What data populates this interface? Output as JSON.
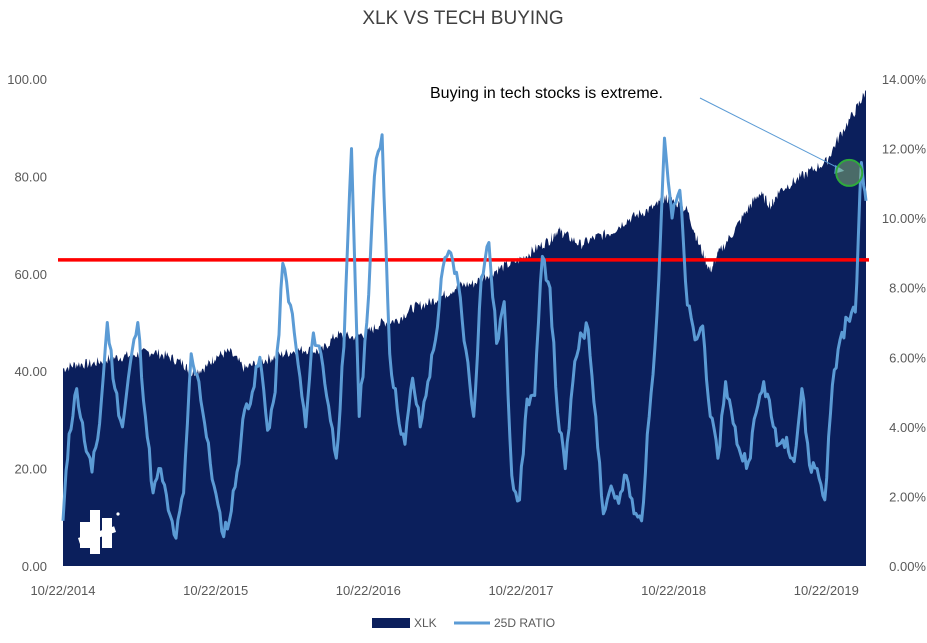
{
  "chart_data": {
    "type": "area",
    "title": "XLK VS TECH BUYING",
    "x_tick_labels": [
      "10/22/2014",
      "10/22/2015",
      "10/22/2016",
      "10/22/2017",
      "10/22/2018",
      "10/22/2019"
    ],
    "y_left": {
      "ticks": [
        "0.00",
        "20.00",
        "40.00",
        "60.00",
        "80.00",
        "100.00"
      ],
      "lim": [
        0,
        100
      ]
    },
    "y_right": {
      "ticks": [
        "0.00%",
        "2.00%",
        "4.00%",
        "6.00%",
        "8.00%",
        "10.00%",
        "12.00%",
        "14.00%"
      ],
      "lim": [
        0,
        14
      ]
    },
    "series": [
      {
        "name": "XLK",
        "axis": "left",
        "kind": "area",
        "color": "#0b1f5c",
        "x": [
          2014.81,
          2014.9,
          2015.0,
          2015.1,
          2015.2,
          2015.3,
          2015.4,
          2015.5,
          2015.6,
          2015.65,
          2015.75,
          2015.81,
          2015.9,
          2016.0,
          2016.1,
          2016.2,
          2016.3,
          2016.4,
          2016.5,
          2016.6,
          2016.7,
          2016.81,
          2016.9,
          2017.0,
          2017.1,
          2017.2,
          2017.3,
          2017.4,
          2017.5,
          2017.6,
          2017.7,
          2017.81,
          2017.9,
          2018.0,
          2018.05,
          2018.1,
          2018.2,
          2018.3,
          2018.4,
          2018.5,
          2018.6,
          2018.7,
          2018.75,
          2018.81,
          2018.9,
          2018.97,
          2019.05,
          2019.1,
          2019.2,
          2019.3,
          2019.37,
          2019.45,
          2019.5,
          2019.6,
          2019.7,
          2019.81,
          2019.9,
          2020.0,
          2020.07
        ],
        "values": [
          40.5,
          41.5,
          41.5,
          42.5,
          43.0,
          43.5,
          44.0,
          43.0,
          41.5,
          39.5,
          41.0,
          43.0,
          44.0,
          40.5,
          42.0,
          43.0,
          44.0,
          44.5,
          44.0,
          47.5,
          47.0,
          48.0,
          50.0,
          50.5,
          53.0,
          54.0,
          55.5,
          57.5,
          58.0,
          60.0,
          61.5,
          63.0,
          65.0,
          67.0,
          69.0,
          68.0,
          66.0,
          67.5,
          68.5,
          71.0,
          72.5,
          74.0,
          75.5,
          75.0,
          73.0,
          66.5,
          60.5,
          64.0,
          68.5,
          73.5,
          76.5,
          74.0,
          77.0,
          79.0,
          81.0,
          83.0,
          88.5,
          93.5,
          97.5
        ]
      },
      {
        "name": "25D RATIO",
        "axis": "right",
        "kind": "line",
        "color": "#5b9bd5",
        "x": [
          2014.81,
          2014.85,
          2014.9,
          2014.95,
          2015.0,
          2015.05,
          2015.1,
          2015.15,
          2015.2,
          2015.25,
          2015.3,
          2015.35,
          2015.4,
          2015.45,
          2015.5,
          2015.55,
          2015.6,
          2015.65,
          2015.7,
          2015.75,
          2015.8,
          2015.85,
          2015.9,
          2015.95,
          2016.0,
          2016.05,
          2016.1,
          2016.15,
          2016.2,
          2016.25,
          2016.3,
          2016.35,
          2016.4,
          2016.45,
          2016.5,
          2016.55,
          2016.6,
          2016.65,
          2016.7,
          2016.75,
          2016.8,
          2016.85,
          2016.9,
          2016.95,
          2017.0,
          2017.05,
          2017.1,
          2017.15,
          2017.2,
          2017.25,
          2017.3,
          2017.35,
          2017.4,
          2017.45,
          2017.5,
          2017.55,
          2017.6,
          2017.65,
          2017.7,
          2017.75,
          2017.8,
          2017.85,
          2017.9,
          2017.95,
          2018.0,
          2018.05,
          2018.1,
          2018.15,
          2018.2,
          2018.25,
          2018.3,
          2018.35,
          2018.4,
          2018.45,
          2018.5,
          2018.55,
          2018.6,
          2018.65,
          2018.7,
          2018.75,
          2018.8,
          2018.85,
          2018.9,
          2018.95,
          2019.0,
          2019.05,
          2019.1,
          2019.15,
          2019.2,
          2019.25,
          2019.3,
          2019.35,
          2019.4,
          2019.45,
          2019.5,
          2019.55,
          2019.6,
          2019.65,
          2019.7,
          2019.75,
          2019.8,
          2019.85,
          2019.9,
          2019.95,
          2020.0,
          2020.04,
          2020.07
        ],
        "values": [
          1.3,
          3.8,
          5.1,
          3.6,
          2.7,
          4.1,
          7.0,
          5.1,
          4.0,
          5.8,
          7.0,
          4.3,
          2.1,
          2.8,
          1.6,
          0.8,
          2.1,
          6.1,
          5.3,
          3.7,
          2.3,
          1.0,
          1.3,
          2.7,
          4.5,
          5.0,
          6.0,
          3.9,
          5.0,
          8.7,
          7.5,
          5.8,
          4.0,
          6.7,
          6.1,
          4.6,
          3.1,
          6.3,
          12.0,
          4.3,
          7.0,
          11.2,
          12.4,
          6.1,
          4.5,
          3.5,
          5.4,
          4.0,
          5.3,
          6.5,
          8.6,
          9.0,
          8.1,
          6.2,
          4.3,
          8.3,
          9.3,
          6.4,
          7.6,
          2.6,
          1.9,
          4.8,
          4.9,
          8.9,
          8.0,
          4.4,
          2.8,
          5.3,
          6.7,
          6.8,
          4.3,
          1.5,
          2.3,
          1.8,
          2.6,
          1.5,
          1.3,
          4.3,
          7.2,
          12.3,
          10.0,
          10.8,
          7.5,
          6.5,
          6.9,
          4.3,
          3.1,
          5.3,
          4.1,
          3.2,
          3.0,
          4.4,
          5.3,
          4.3,
          3.5,
          3.7,
          3.0,
          5.1,
          2.9,
          2.8,
          1.9,
          5.2,
          6.5,
          7.1,
          7.3,
          11.6,
          10.5
        ]
      }
    ],
    "threshold": {
      "value": 8.8,
      "axis": "right",
      "color": "#ff0000"
    },
    "annotation": {
      "text": "Buying in tech stocks is extreme.",
      "target_x": 2019.98,
      "target_y": 11.3
    },
    "legend": {
      "position": "bottom",
      "entries": [
        "XLK",
        "25D RATIO"
      ]
    },
    "grid": false
  }
}
